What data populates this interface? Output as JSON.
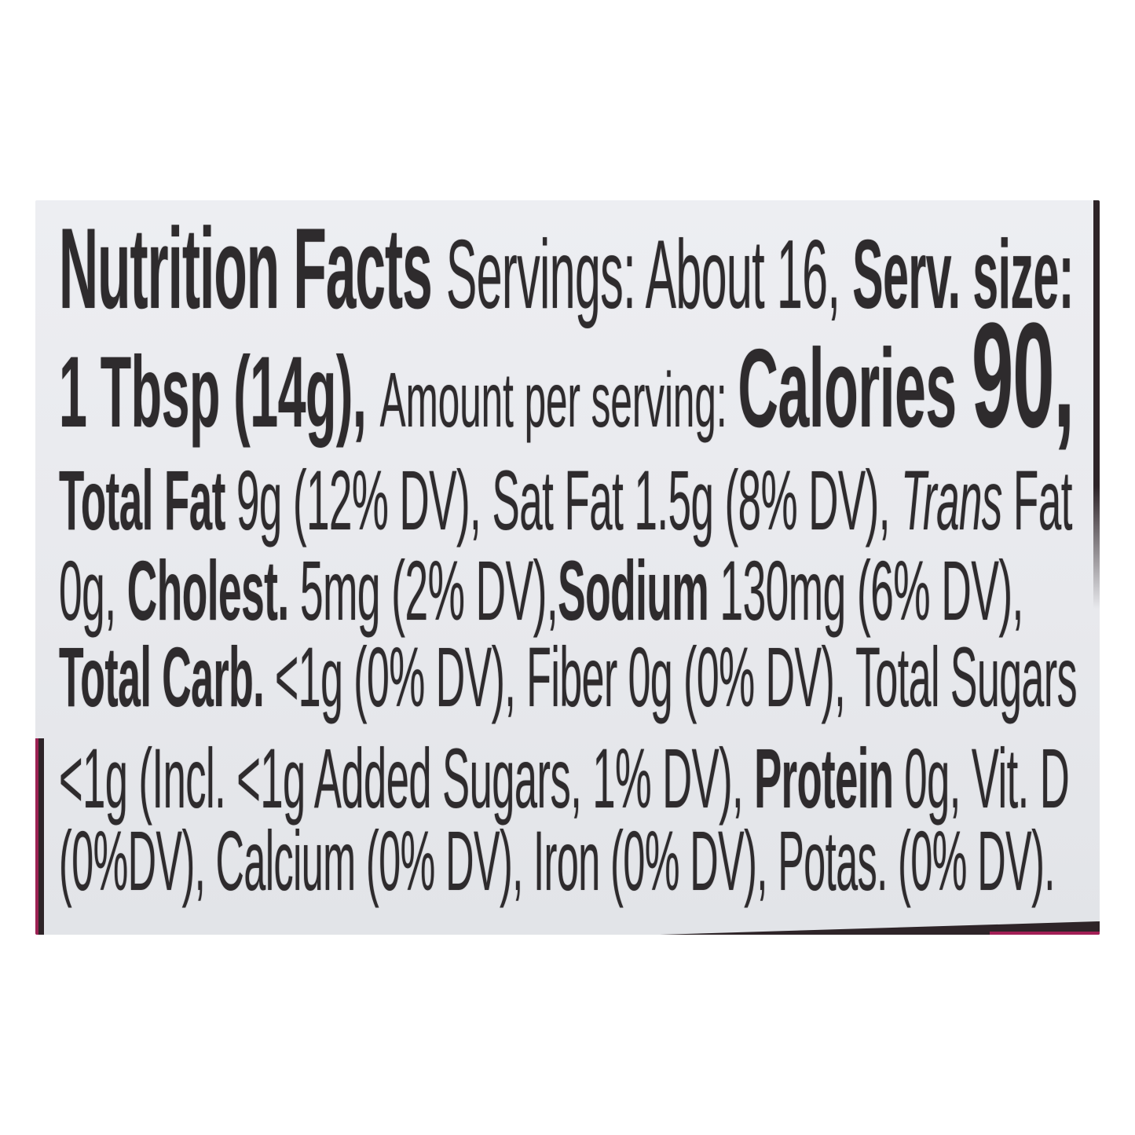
{
  "colors": {
    "page_bg": "#ffffff",
    "label_bg": "#e8e9ed",
    "ink": "#2e2b2d",
    "edge_dark": "#2e2428",
    "edge_magenta": "#9b2153"
  },
  "label": {
    "heading": "Nutrition Facts ",
    "servings": "Servings: About 16, ",
    "serv_size_label": "Serv. size:",
    "serving_size": "1 Tbsp (14g), ",
    "amount_per_serving": "Amount per serving: ",
    "calories_label": "Calories ",
    "calories_value": "90,",
    "fat_label": "Total Fat",
    "fat_text": " 9g (12% DV), Sat Fat 1.5g (8% DV), ",
    "trans_word": "Trans",
    "trans_fat_rest": " Fat",
    "line4_start": "0g, ",
    "cholest_label": "Cholest.",
    "cholest_text": " 5mg (2% DV),",
    "sodium_label": "Sodium",
    "sodium_text": " 130mg (6% DV),",
    "carb_label": "Total Carb.",
    "carb_text": " <1g (0% DV), Fiber 0g (0% DV), Total Sugars",
    "sugars_text": "<1g (Incl. <1g Added Sugars, 1% DV), ",
    "protein_label": "Protein",
    "protein_text": " 0g, Vit. D",
    "last_line": "(0%DV), Calcium (0% DV), Iron (0% DV), Potas. (0% DV)."
  }
}
